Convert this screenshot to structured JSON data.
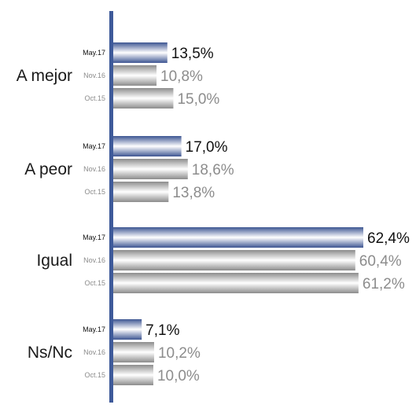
{
  "chart_data": {
    "type": "bar",
    "orientation": "horizontal",
    "categories": [
      "A mejor",
      "A peor",
      "Igual",
      "Ns/Nc"
    ],
    "periods": [
      "May.17",
      "Nov.16",
      "Oct.15"
    ],
    "series": [
      {
        "name": "May.17",
        "values": [
          13.5,
          17.0,
          62.4,
          7.1
        ],
        "labels": [
          "13,5%",
          "17,0%",
          "62,4%",
          "7,1%"
        ]
      },
      {
        "name": "Nov.16",
        "values": [
          10.8,
          18.6,
          60.4,
          10.2
        ],
        "labels": [
          "10,8%",
          "18,6%",
          "60,4%",
          "10,2%"
        ]
      },
      {
        "name": "Oct.15",
        "values": [
          15.0,
          13.8,
          61.2,
          10.0
        ],
        "labels": [
          "15,0%",
          "13,8%",
          "61,2%",
          "10,0%"
        ]
      }
    ],
    "xlim": [
      0,
      62.4
    ],
    "grid": false,
    "legend": "none",
    "colors": {
      "axis": "#3e5a9a",
      "current_dark": "#3d5592",
      "current_light": "#ffffff",
      "past_dark": "#8c8c8c",
      "past_light": "#ffffff",
      "current_label": "#111111",
      "past_label": "#8c8c8c"
    }
  }
}
